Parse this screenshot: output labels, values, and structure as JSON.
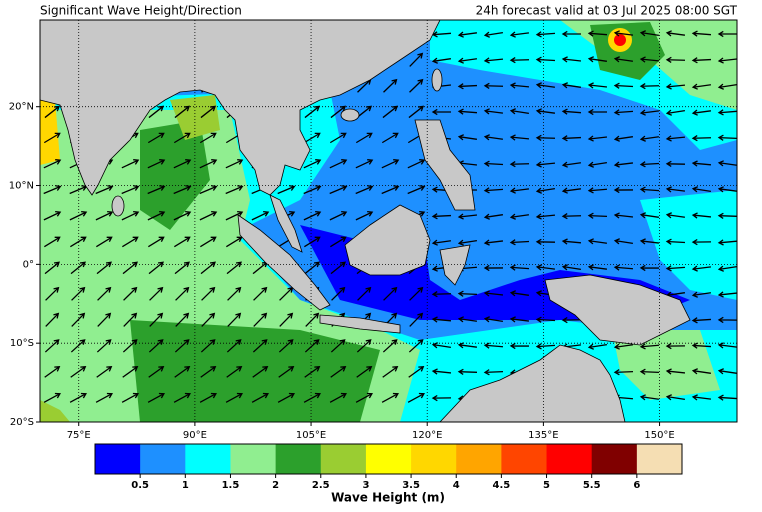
{
  "header": {
    "title": "Significant Wave Height/Direction",
    "valid": "24h forecast valid at 03 Jul 2025 08:00 SGT"
  },
  "map": {
    "lonlim": [
      70,
      160
    ],
    "latlim": [
      -20,
      31
    ],
    "grid": true,
    "lonticks": [
      {
        "value": 75,
        "label": "75°E"
      },
      {
        "value": 90,
        "label": "90°E"
      },
      {
        "value": 105,
        "label": "105°E"
      },
      {
        "value": 120,
        "label": "120°E"
      },
      {
        "value": 135,
        "label": "135°E"
      },
      {
        "value": 150,
        "label": "150°E"
      }
    ],
    "latticks": [
      {
        "value": 20,
        "label": "20°N"
      },
      {
        "value": 10,
        "label": "10°N"
      },
      {
        "value": 0,
        "label": "0°"
      },
      {
        "value": -10,
        "label": "10°S"
      },
      {
        "value": -20,
        "label": "20°S"
      }
    ]
  },
  "colorbar": {
    "label": "Wave Height (m)",
    "lim": [
      0,
      6.5
    ],
    "ticks": [
      0.5,
      1,
      1.5,
      2,
      2.5,
      3,
      3.5,
      4,
      4.5,
      5,
      5.5,
      6
    ],
    "colors": [
      "#0000ff",
      "#1e90ff",
      "#00ffff",
      "#90ee90",
      "#2ca02c",
      "#9acd32",
      "#ffff00",
      "#ffd700",
      "#ffa500",
      "#ff4500",
      "#ff0000",
      "#800000",
      "#f5deb3"
    ]
  }
}
